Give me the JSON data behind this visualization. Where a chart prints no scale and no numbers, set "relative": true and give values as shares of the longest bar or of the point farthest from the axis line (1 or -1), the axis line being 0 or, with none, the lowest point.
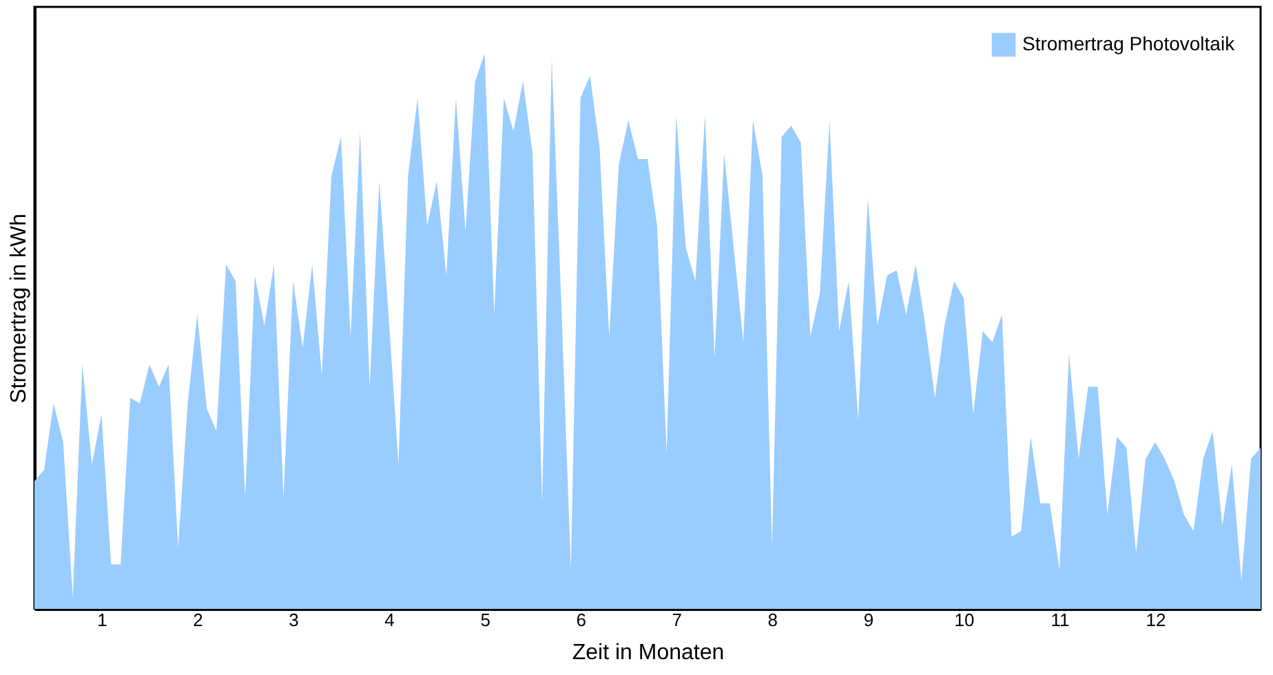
{
  "chart_data": {
    "type": "area",
    "relative": true,
    "xlabel": "Zeit in Monaten",
    "ylabel": "Stromertrag in kWh",
    "legend": "top right",
    "grid": false,
    "xlim": [
      0.3,
      13.1
    ],
    "xticks": [
      1,
      2,
      3,
      4,
      5,
      6,
      7,
      8,
      9,
      10,
      11,
      12
    ],
    "x": [
      0.3,
      0.4,
      0.5,
      0.6,
      0.7,
      0.8,
      0.9,
      1.0,
      1.1,
      1.2,
      1.3,
      1.4,
      1.5,
      1.6,
      1.7,
      1.8,
      1.9,
      2.0,
      2.1,
      2.2,
      2.3,
      2.4,
      2.5,
      2.6,
      2.7,
      2.8,
      2.9,
      3.0,
      3.1,
      3.2,
      3.3,
      3.4,
      3.5,
      3.6,
      3.7,
      3.8,
      3.9,
      4.0,
      4.1,
      4.2,
      4.3,
      4.4,
      4.5,
      4.6,
      4.7,
      4.8,
      4.9,
      5.0,
      5.1,
      5.2,
      5.3,
      5.4,
      5.5,
      5.6,
      5.7,
      5.8,
      5.9,
      6.0,
      6.1,
      6.2,
      6.3,
      6.4,
      6.5,
      6.6,
      6.7,
      6.8,
      6.9,
      7.0,
      7.1,
      7.2,
      7.3,
      7.4,
      7.5,
      7.6,
      7.7,
      7.8,
      7.9,
      8.0,
      8.1,
      8.2,
      8.3,
      8.4,
      8.5,
      8.6,
      8.7,
      8.8,
      8.9,
      9.0,
      9.1,
      9.2,
      9.3,
      9.4,
      9.5,
      9.6,
      9.7,
      9.8,
      9.9,
      10.0,
      10.1,
      10.2,
      10.3,
      10.4,
      10.5,
      10.6,
      10.7,
      10.8,
      10.9,
      11.0,
      11.1,
      11.2,
      11.3,
      11.4,
      11.5,
      11.6,
      11.7,
      11.8,
      11.9,
      12.0,
      12.1,
      12.2,
      12.3,
      12.4,
      12.5,
      12.6,
      12.7,
      12.8,
      12.9,
      13.0,
      13.1
    ],
    "series": [
      {
        "name": "Stromertrag Photovoltaik",
        "color": "#99ccff",
        "values": [
          0.23,
          0.25,
          0.37,
          0.3,
          0.02,
          0.44,
          0.26,
          0.35,
          0.08,
          0.08,
          0.38,
          0.37,
          0.44,
          0.4,
          0.44,
          0.11,
          0.37,
          0.53,
          0.36,
          0.32,
          0.62,
          0.59,
          0.2,
          0.6,
          0.51,
          0.62,
          0.2,
          0.59,
          0.47,
          0.62,
          0.42,
          0.78,
          0.85,
          0.49,
          0.86,
          0.4,
          0.77,
          0.52,
          0.26,
          0.78,
          0.92,
          0.69,
          0.77,
          0.6,
          0.92,
          0.68,
          0.95,
          1.0,
          0.53,
          0.92,
          0.86,
          0.95,
          0.82,
          0.19,
          0.99,
          0.55,
          0.07,
          0.92,
          0.96,
          0.83,
          0.49,
          0.8,
          0.88,
          0.81,
          0.81,
          0.69,
          0.28,
          0.89,
          0.65,
          0.59,
          0.89,
          0.45,
          0.82,
          0.65,
          0.48,
          0.88,
          0.78,
          0.11,
          0.85,
          0.87,
          0.84,
          0.49,
          0.57,
          0.88,
          0.5,
          0.59,
          0.34,
          0.74,
          0.51,
          0.6,
          0.61,
          0.53,
          0.62,
          0.51,
          0.38,
          0.51,
          0.59,
          0.56,
          0.35,
          0.5,
          0.48,
          0.53,
          0.13,
          0.14,
          0.31,
          0.19,
          0.19,
          0.07,
          0.46,
          0.27,
          0.4,
          0.4,
          0.17,
          0.31,
          0.29,
          0.1,
          0.27,
          0.3,
          0.27,
          0.23,
          0.17,
          0.14,
          0.27,
          0.32,
          0.15,
          0.26,
          0.05,
          0.27,
          0.29
        ]
      }
    ]
  }
}
